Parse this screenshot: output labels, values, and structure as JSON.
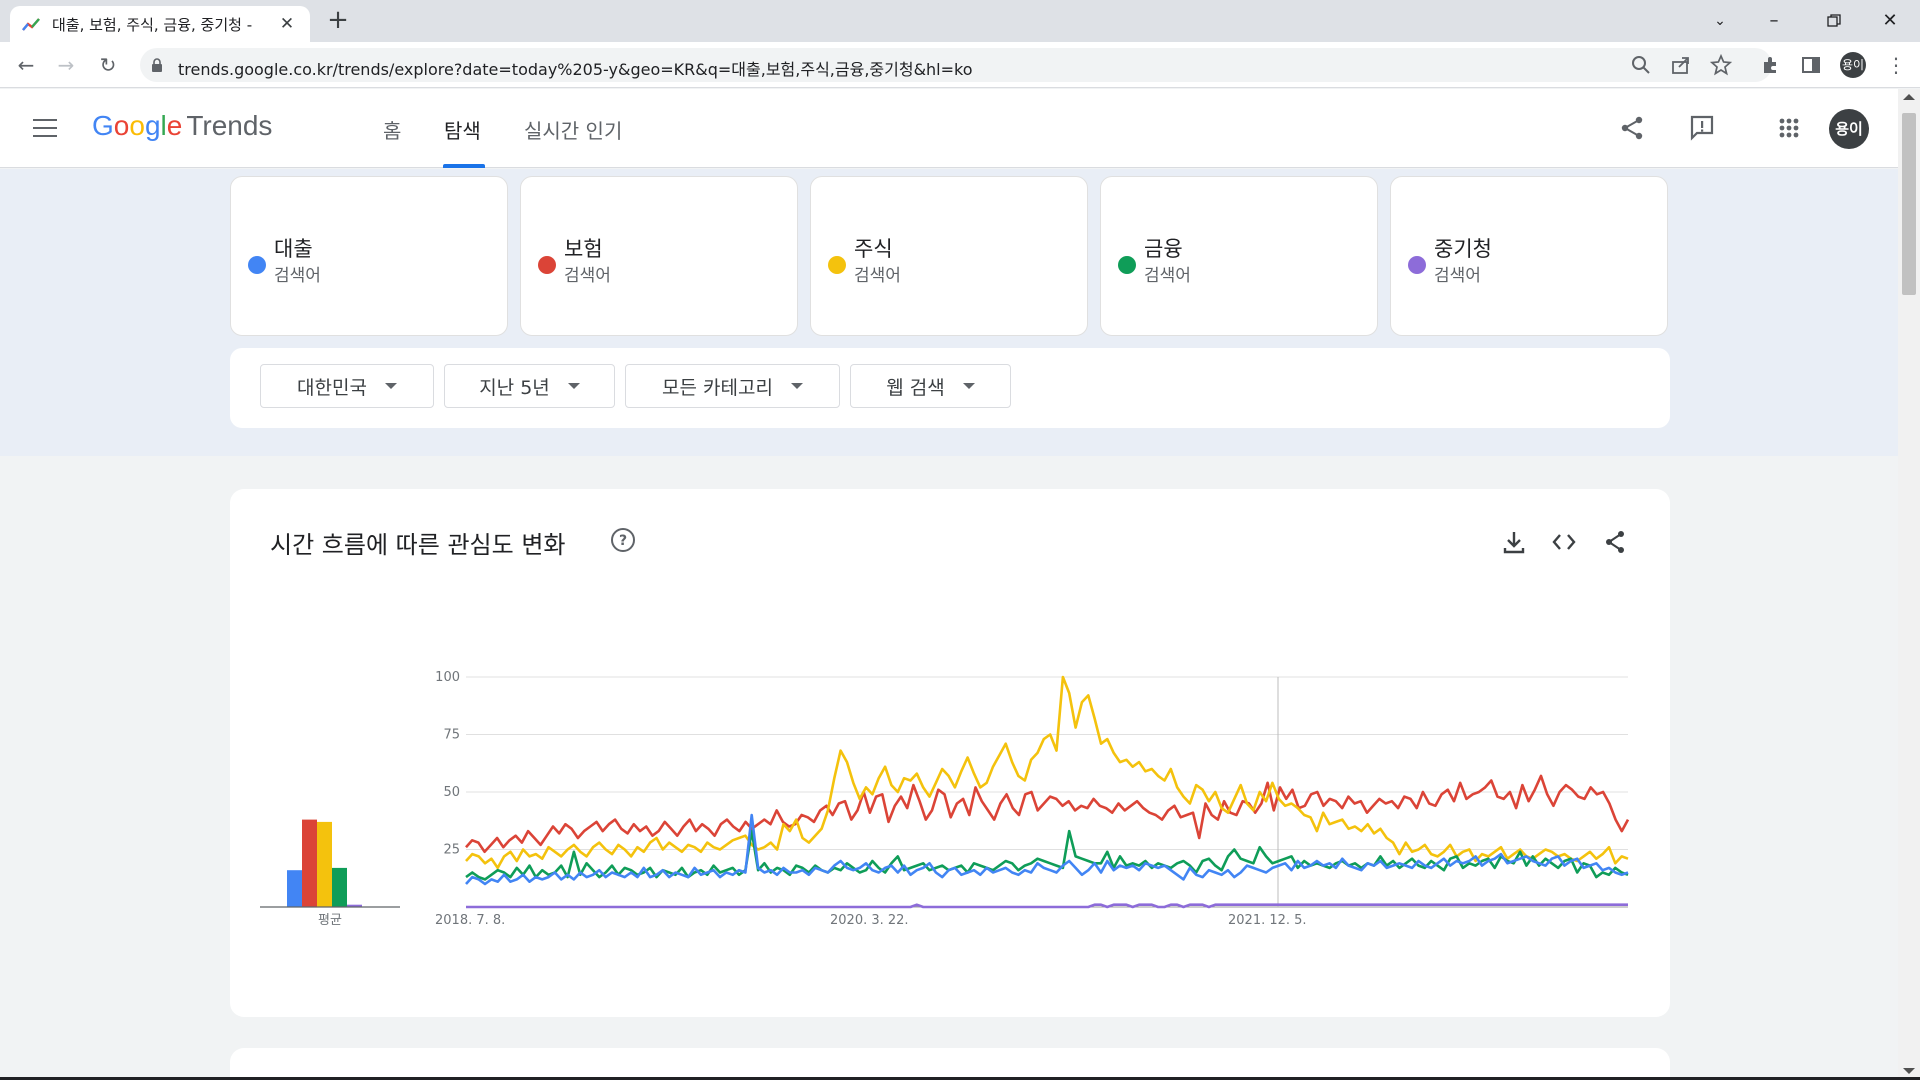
{
  "browser": {
    "tab_title": "대출, 보험, 주식, 금융, 중기청 -",
    "url": "trends.google.co.kr/trends/explore?date=today%205-y&geo=KR&q=대출,보험,주식,금융,중기청&hl=ko",
    "profile_initials": "용이"
  },
  "header": {
    "logo_google": [
      "G",
      "o",
      "o",
      "g",
      "l",
      "e"
    ],
    "logo_trends": "Trends",
    "nav": [
      "홈",
      "탐색",
      "실시간 인기"
    ],
    "active_nav": "탐색",
    "avatar_initials": "용이"
  },
  "terms": [
    {
      "name": "대출",
      "sub": "검색어",
      "color": "#4285f4"
    },
    {
      "name": "보험",
      "sub": "검색어",
      "color": "#db4437"
    },
    {
      "name": "주식",
      "sub": "검색어",
      "color": "#f4c20d"
    },
    {
      "name": "금융",
      "sub": "검색어",
      "color": "#0f9d58"
    },
    {
      "name": "중기청",
      "sub": "검색어",
      "color": "#8d6cd9"
    }
  ],
  "filters": [
    "대한민국",
    "지난 5년",
    "모든 카테고리",
    "웹 검색"
  ],
  "panel": {
    "title": "시간 흐름에 따른 관심도 변화"
  },
  "chart_data": {
    "type": "line",
    "yticks": [
      100,
      75,
      50,
      25
    ],
    "ylim": [
      0,
      100
    ],
    "xticks": [
      "2018. 7. 8.",
      "2020. 3. 22.",
      "2021. 12. 5."
    ],
    "grid": true,
    "average_label": "평균",
    "averages": [
      {
        "name": "대출",
        "value": 16,
        "color": "#4285f4"
      },
      {
        "name": "보험",
        "value": 38,
        "color": "#db4437"
      },
      {
        "name": "주식",
        "value": 37,
        "color": "#f4c20d"
      },
      {
        "name": "금융",
        "value": 17,
        "color": "#0f9d58"
      },
      {
        "name": "중기청",
        "value": 1,
        "color": "#8d6cd9"
      }
    ],
    "series": [
      {
        "name": "보험",
        "color": "#db4437",
        "values": [
          26,
          29,
          28,
          24,
          27,
          30,
          26,
          29,
          31,
          28,
          33,
          30,
          27,
          31,
          35,
          32,
          36,
          34,
          30,
          33,
          35,
          37,
          33,
          36,
          38,
          34,
          32,
          36,
          33,
          35,
          31,
          33,
          37,
          34,
          31,
          35,
          38,
          33,
          36,
          34,
          31,
          36,
          38,
          35,
          33,
          37,
          34,
          36,
          38,
          36,
          42,
          37,
          35,
          36,
          40,
          39,
          37,
          42,
          44,
          40,
          45,
          46,
          38,
          42,
          50,
          41,
          48,
          49,
          37,
          44,
          48,
          43,
          53,
          46,
          38,
          42,
          51,
          49,
          39,
          45,
          47,
          40,
          52,
          46,
          42,
          38,
          45,
          49,
          43,
          40,
          49,
          50,
          42,
          45,
          48,
          47,
          44,
          46,
          42,
          44,
          43,
          47,
          44,
          43,
          41,
          45,
          42,
          44,
          46,
          43,
          41,
          40,
          38,
          42,
          44,
          39,
          40,
          41,
          30,
          45,
          40,
          38,
          46,
          41,
          40,
          46,
          45,
          41,
          45,
          54,
          42,
          52,
          47,
          51,
          43,
          44,
          49,
          50,
          44,
          47,
          46,
          43,
          48,
          45,
          46,
          41,
          44,
          47,
          45,
          46,
          43,
          48,
          47,
          43,
          50,
          45,
          44,
          49,
          51,
          46,
          54,
          47,
          49,
          50,
          52,
          55,
          48,
          47,
          50,
          43,
          53,
          46,
          51,
          57,
          49,
          44,
          50,
          53,
          51,
          48,
          47,
          52,
          49,
          50,
          45,
          38,
          33,
          38
        ]
      },
      {
        "name": "주식",
        "color": "#f4c20d",
        "values": [
          20,
          23,
          22,
          19,
          21,
          17,
          22,
          24,
          20,
          25,
          22,
          23,
          21,
          26,
          24,
          22,
          25,
          27,
          24,
          22,
          26,
          28,
          25,
          23,
          27,
          25,
          22,
          26,
          24,
          28,
          30,
          25,
          28,
          26,
          24,
          27,
          26,
          24,
          28,
          26,
          25,
          27,
          29,
          30,
          31,
          27,
          25,
          26,
          28,
          25,
          36,
          33,
          38,
          30,
          28,
          31,
          34,
          42,
          56,
          68,
          63,
          54,
          47,
          52,
          49,
          56,
          61,
          53,
          50,
          56,
          55,
          58,
          52,
          48,
          54,
          60,
          57,
          52,
          59,
          65,
          58,
          52,
          54,
          61,
          66,
          71,
          63,
          57,
          55,
          64,
          67,
          73,
          75,
          68,
          100,
          93,
          78,
          89,
          92,
          82,
          71,
          73,
          67,
          63,
          64,
          61,
          63,
          59,
          60,
          57,
          55,
          60,
          52,
          48,
          45,
          53,
          51,
          46,
          50,
          43,
          41,
          47,
          53,
          45,
          42,
          50,
          46,
          54,
          47,
          44,
          45,
          43,
          40,
          39,
          33,
          41,
          36,
          37,
          38,
          34,
          35,
          33,
          36,
          32,
          34,
          30,
          28,
          23,
          28,
          24,
          25,
          27,
          23,
          22,
          24,
          27,
          22,
          24,
          25,
          20,
          23,
          22,
          24,
          26,
          21,
          23,
          25,
          22,
          21,
          23,
          25,
          24,
          22,
          23,
          21,
          20,
          22,
          24,
          21,
          23,
          26,
          19,
          22,
          21
        ]
      },
      {
        "name": "금융",
        "color": "#0f9d58",
        "values": [
          13,
          15,
          13,
          12,
          14,
          16,
          15,
          13,
          17,
          14,
          18,
          13,
          16,
          14,
          15,
          18,
          13,
          24,
          14,
          19,
          16,
          13,
          15,
          18,
          14,
          17,
          16,
          14,
          15,
          17,
          13,
          16,
          15,
          14,
          17,
          13,
          15,
          16,
          14,
          18,
          15,
          16,
          17,
          14,
          16,
          33,
          16,
          19,
          15,
          17,
          16,
          14,
          18,
          17,
          15,
          18,
          16,
          15,
          17,
          16,
          19,
          17,
          15,
          16,
          20,
          17,
          15,
          19,
          22,
          16,
          17,
          18,
          19,
          16,
          17,
          18,
          16,
          17,
          18,
          15,
          19,
          18,
          17,
          16,
          18,
          20,
          19,
          16,
          18,
          19,
          21,
          20,
          19,
          18,
          17,
          33,
          22,
          21,
          20,
          19,
          19,
          24,
          17,
          22,
          18,
          19,
          18,
          20,
          17,
          19,
          18,
          17,
          19,
          20,
          18,
          15,
          20,
          21,
          18,
          16,
          22,
          25,
          21,
          20,
          19,
          26,
          22,
          19,
          20,
          21,
          22,
          17,
          20,
          18,
          19,
          18,
          17,
          19,
          20,
          18,
          19,
          17,
          19,
          18,
          22,
          18,
          20,
          17,
          19,
          21,
          18,
          17,
          20,
          18,
          16,
          21,
          22,
          17,
          19,
          18,
          20,
          21,
          17,
          22,
          20,
          19,
          24,
          18,
          22,
          18,
          21,
          19,
          17,
          20,
          21,
          15,
          19,
          18,
          13,
          15,
          14,
          17,
          15,
          14
        ]
      },
      {
        "name": "대출",
        "color": "#4285f4",
        "values": [
          10,
          13,
          12,
          10,
          12,
          11,
          14,
          11,
          12,
          14,
          11,
          13,
          12,
          13,
          15,
          12,
          14,
          12,
          15,
          13,
          14,
          16,
          13,
          15,
          14,
          13,
          15,
          13,
          17,
          13,
          14,
          16,
          13,
          15,
          14,
          13,
          17,
          14,
          15,
          16,
          13,
          15,
          14,
          16,
          15,
          40,
          17,
          15,
          16,
          14,
          17,
          15,
          15,
          16,
          14,
          17,
          16,
          15,
          18,
          20,
          17,
          16,
          17,
          19,
          16,
          15,
          17,
          18,
          15,
          18,
          14,
          16,
          17,
          19,
          15,
          13,
          16,
          17,
          14,
          15,
          16,
          14,
          17,
          15,
          16,
          17,
          15,
          14,
          16,
          15,
          19,
          17,
          16,
          15,
          18,
          20,
          17,
          14,
          16,
          19,
          15,
          20,
          16,
          18,
          17,
          18,
          16,
          19,
          18,
          17,
          18,
          16,
          14,
          12,
          17,
          14,
          13,
          16,
          15,
          14,
          16,
          13,
          15,
          18,
          17,
          16,
          15,
          17,
          18,
          19,
          16,
          20,
          17,
          18,
          20,
          18,
          19,
          17,
          21,
          18,
          17,
          16,
          19,
          18,
          20,
          17,
          18,
          19,
          18,
          17,
          20,
          18,
          17,
          19,
          21,
          18,
          20,
          19,
          20,
          22,
          18,
          20,
          21,
          23,
          19,
          20,
          21,
          22,
          20,
          19,
          18,
          21,
          22,
          18,
          20,
          21,
          17,
          18,
          19,
          16,
          17,
          15,
          14,
          15
        ]
      },
      {
        "name": "중기청",
        "color": "#8d6cd9",
        "values": [
          0,
          0,
          0,
          0,
          0,
          0,
          0,
          0,
          0,
          0,
          0,
          0,
          0,
          0,
          0,
          0,
          0,
          0,
          0,
          0,
          0,
          0,
          0,
          0,
          0,
          0,
          0,
          0,
          0,
          0,
          0,
          0,
          0,
          0,
          0,
          0,
          0,
          0,
          0,
          0,
          0,
          0,
          0,
          0,
          0,
          0,
          0,
          0,
          0,
          0,
          0,
          0,
          0,
          0,
          0,
          0,
          0,
          0,
          0,
          0,
          0,
          0,
          0,
          0,
          0,
          0,
          0,
          0,
          0,
          0,
          0,
          1,
          0,
          0,
          0,
          0,
          0,
          0,
          0,
          0,
          0,
          0,
          0,
          0,
          0,
          0,
          0,
          0,
          0,
          0,
          0,
          0,
          0,
          0,
          0,
          0,
          0,
          0,
          0,
          1,
          1,
          0,
          1,
          1,
          1,
          0,
          1,
          1,
          1,
          0,
          0,
          1,
          1,
          0,
          1,
          1,
          1,
          0,
          1,
          1,
          1,
          1,
          1,
          1,
          1,
          1,
          1,
          1,
          1,
          1,
          1,
          1,
          1,
          1,
          1,
          1,
          1,
          1,
          1,
          1,
          1,
          1,
          1,
          1,
          1,
          1,
          1,
          1,
          1,
          1,
          1,
          1,
          1,
          1,
          1,
          1,
          1,
          1,
          1,
          1,
          1,
          1,
          1,
          1,
          1,
          1,
          1,
          1,
          1,
          1,
          1,
          1,
          1,
          1,
          1,
          1,
          1,
          1,
          1,
          1,
          1,
          1,
          1,
          1
        ]
      }
    ]
  }
}
